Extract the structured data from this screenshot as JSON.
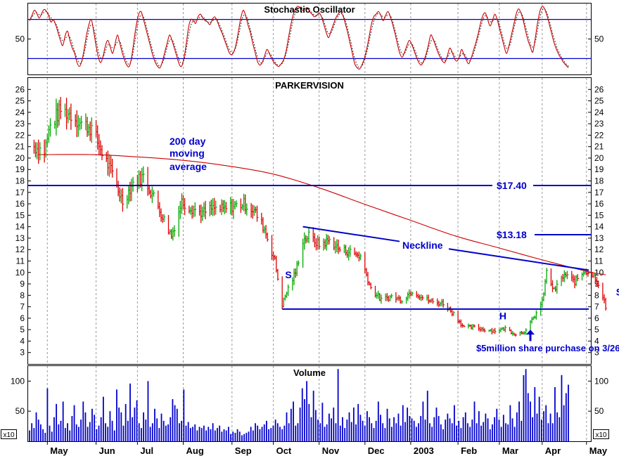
{
  "chart_data": [
    {
      "type": "line",
      "title": "Stochastic Oscillator",
      "ylim": [
        0,
        100
      ],
      "reference_lines": [
        80,
        20
      ],
      "tick_labels": [
        "50"
      ],
      "series": [
        {
          "color": "#cc0000",
          "style": "solid",
          "values": [
            78,
            86,
            94,
            90,
            82,
            88,
            95,
            93,
            86,
            76,
            80,
            72,
            60,
            48,
            40,
            55,
            62,
            48,
            36,
            28,
            14,
            8,
            16,
            34,
            56,
            72,
            80,
            62,
            40,
            22,
            14,
            24,
            40,
            48,
            38,
            28,
            42,
            56,
            44,
            30,
            18,
            10,
            8,
            22,
            48,
            72,
            88,
            92,
            80,
            66,
            52,
            38,
            24,
            14,
            8,
            6,
            16,
            30,
            44,
            56,
            48,
            36,
            24,
            12,
            8,
            20,
            42,
            68,
            80,
            78,
            74,
            84,
            88,
            82,
            78,
            76,
            72,
            80,
            84,
            78,
            68,
            60,
            50,
            40,
            30,
            26,
            30,
            42,
            62,
            82,
            94,
            86,
            72,
            60,
            44,
            30,
            16,
            10,
            14,
            24,
            34,
            28,
            20,
            14,
            10,
            8,
            12,
            18,
            30,
            50,
            70,
            86,
            96,
            100,
            98,
            94,
            96,
            98,
            92,
            88,
            84,
            86,
            90,
            84,
            72,
            60,
            52,
            62,
            72,
            82,
            88,
            92,
            86,
            74,
            60,
            44,
            28,
            12,
            6,
            4,
            10,
            20,
            34,
            52,
            72,
            84,
            88,
            92,
            86,
            78,
            86,
            92,
            84,
            72,
            58,
            42,
            28,
            22,
            30,
            40,
            48,
            42,
            32,
            22,
            14,
            10,
            16,
            26,
            40,
            56,
            50,
            40,
            30,
            22,
            16,
            14,
            24,
            36,
            30,
            20,
            16,
            22,
            34,
            26,
            18,
            12,
            20,
            32,
            44,
            58,
            74,
            86,
            90,
            80,
            70,
            78,
            88,
            80,
            66,
            52,
            38,
            28,
            40,
            56,
            72,
            88,
            96,
            90,
            78,
            62,
            48,
            38,
            30,
            50,
            74,
            92,
            100,
            96,
            86,
            72,
            58,
            44,
            34,
            26,
            20,
            14,
            10,
            6
          ],
          "dates": "daily, May 2002 – May 2003"
        },
        {
          "color": "#333333",
          "style": "dotted",
          "values": "3-period smoothing of the solid series"
        }
      ]
    },
    {
      "type": "ohlc",
      "title": "PARKERVISION",
      "ylim": [
        2,
        27
      ],
      "y_ticks": [
        3,
        4,
        5,
        6,
        7,
        8,
        9,
        10,
        11,
        12,
        13,
        14,
        15,
        16,
        17,
        18,
        19,
        20,
        21,
        22,
        23,
        24,
        25,
        26
      ],
      "y_tick_labels": [
        "3",
        "4",
        "5",
        "6",
        "7",
        "8",
        "9",
        "10",
        "11",
        "12",
        "13",
        "14",
        "15",
        "16",
        "17",
        "18",
        "19",
        "20",
        "21",
        "22",
        "23",
        "24",
        "25",
        "26"
      ],
      "price_bars": "daily high/low/close bars, green = up day, red = down day",
      "close_waypoints": [
        {
          "x": "2002-04-22",
          "y": 21.0
        },
        {
          "x": "2002-04-29",
          "y": 20.6
        },
        {
          "x": "2002-05-03",
          "y": 22.8
        },
        {
          "x": "2002-05-10",
          "y": 24.2
        },
        {
          "x": "2002-05-17",
          "y": 23.8
        },
        {
          "x": "2002-05-24",
          "y": 23.0
        },
        {
          "x": "2002-05-31",
          "y": 22.6
        },
        {
          "x": "2002-06-07",
          "y": 20.5
        },
        {
          "x": "2002-06-14",
          "y": 18.6
        },
        {
          "x": "2002-06-21",
          "y": 16.2
        },
        {
          "x": "2002-06-28",
          "y": 17.8
        },
        {
          "x": "2002-07-05",
          "y": 18.4
        },
        {
          "x": "2002-07-12",
          "y": 16.6
        },
        {
          "x": "2002-07-19",
          "y": 14.6
        },
        {
          "x": "2002-07-24",
          "y": 13.2
        },
        {
          "x": "2002-07-31",
          "y": 16.2
        },
        {
          "x": "2002-08-07",
          "y": 15.6
        },
        {
          "x": "2002-08-14",
          "y": 15.2
        },
        {
          "x": "2002-08-21",
          "y": 15.6
        },
        {
          "x": "2002-08-28",
          "y": 15.5
        },
        {
          "x": "2002-09-04",
          "y": 15.8
        },
        {
          "x": "2002-09-11",
          "y": 16.0
        },
        {
          "x": "2002-09-18",
          "y": 15.4
        },
        {
          "x": "2002-09-25",
          "y": 13.8
        },
        {
          "x": "2002-10-02",
          "y": 11.0
        },
        {
          "x": "2002-10-07",
          "y": 7.2
        },
        {
          "x": "2002-10-11",
          "y": 8.6
        },
        {
          "x": "2002-10-16",
          "y": 10.0
        },
        {
          "x": "2002-10-21",
          "y": 12.8
        },
        {
          "x": "2002-10-25",
          "y": 13.2
        },
        {
          "x": "2002-11-01",
          "y": 12.4
        },
        {
          "x": "2002-11-08",
          "y": 12.8
        },
        {
          "x": "2002-11-15",
          "y": 12.0
        },
        {
          "x": "2002-11-22",
          "y": 11.8
        },
        {
          "x": "2002-11-29",
          "y": 11.4
        },
        {
          "x": "2002-12-06",
          "y": 8.6
        },
        {
          "x": "2002-12-13",
          "y": 7.6
        },
        {
          "x": "2002-12-20",
          "y": 7.9
        },
        {
          "x": "2002-12-27",
          "y": 7.6
        },
        {
          "x": "2003-01-03",
          "y": 8.4
        },
        {
          "x": "2003-01-10",
          "y": 7.8
        },
        {
          "x": "2003-01-17",
          "y": 7.4
        },
        {
          "x": "2003-01-24",
          "y": 7.3
        },
        {
          "x": "2003-01-31",
          "y": 6.4
        },
        {
          "x": "2003-02-07",
          "y": 5.2
        },
        {
          "x": "2003-02-14",
          "y": 5.2
        },
        {
          "x": "2003-02-21",
          "y": 5.0
        },
        {
          "x": "2003-02-28",
          "y": 4.9
        },
        {
          "x": "2003-03-07",
          "y": 5.1
        },
        {
          "x": "2003-03-14",
          "y": 4.6
        },
        {
          "x": "2003-03-21",
          "y": 4.9
        },
        {
          "x": "2003-03-26",
          "y": 6.0
        },
        {
          "x": "2003-04-01",
          "y": 7.4
        },
        {
          "x": "2003-04-04",
          "y": 10.0
        },
        {
          "x": "2003-04-09",
          "y": 8.4
        },
        {
          "x": "2003-04-16",
          "y": 9.8
        },
        {
          "x": "2003-04-23",
          "y": 9.2
        },
        {
          "x": "2003-04-30",
          "y": 10.2
        },
        {
          "x": "2003-05-07",
          "y": 9.6
        },
        {
          "x": "2003-05-12",
          "y": 8.0
        },
        {
          "x": "2003-05-14",
          "y": 6.9
        }
      ],
      "moving_average": {
        "label_lines": [
          "200 day",
          "moving",
          "average"
        ],
        "color": "#cc0000",
        "points": [
          {
            "x": "2002-04-25",
            "y": 20.3
          },
          {
            "x": "2002-06-01",
            "y": 20.3
          },
          {
            "x": "2002-07-01",
            "y": 20.1
          },
          {
            "x": "2002-08-01",
            "y": 19.8
          },
          {
            "x": "2002-09-01",
            "y": 19.3
          },
          {
            "x": "2002-10-01",
            "y": 18.6
          },
          {
            "x": "2002-11-01",
            "y": 17.4
          },
          {
            "x": "2002-12-01",
            "y": 16.0
          },
          {
            "x": "2003-01-01",
            "y": 14.6
          },
          {
            "x": "2003-02-01",
            "y": 13.2
          },
          {
            "x": "2003-03-01",
            "y": 12.2
          },
          {
            "x": "2003-04-01",
            "y": 11.1
          },
          {
            "x": "2003-05-01",
            "y": 10.1
          },
          {
            "x": "2003-05-14",
            "y": 9.8
          }
        ]
      },
      "levels": [
        {
          "label": "$17.40",
          "y": 17.6
        },
        {
          "label": "$13.18",
          "y": 13.3
        }
      ],
      "neckline": {
        "label": "Neckline",
        "from": {
          "x": "2002-10-21",
          "y": 14.0
        },
        "to": {
          "x": "2003-05-31",
          "y": 10.2
        }
      },
      "support": {
        "from": {
          "x": "2002-10-07",
          "y": 6.8
        },
        "to": {
          "x": "2003-05-31",
          "y": 6.8
        }
      },
      "annotations": [
        {
          "text": "S",
          "x": "2002-10-09",
          "y": 9.5
        },
        {
          "text": "H",
          "x": "2003-03-03",
          "y": 5.9
        },
        {
          "text": "S",
          "x": "2003-05-21",
          "y": 8.0
        },
        {
          "text": "$5million share purchase on 3/26",
          "x": "2003-04-05",
          "y": 3.1
        }
      ],
      "arrow": {
        "x": "2003-03-24",
        "y_from": 4.0,
        "y_to": 5.0
      }
    },
    {
      "type": "bar",
      "title": "Volume",
      "unit_label": "x10",
      "ylim": [
        0,
        125
      ],
      "y_ticks": [
        50,
        100
      ],
      "y_tick_labels": [
        "50",
        "100"
      ],
      "bar_color": "#0000cc",
      "values": [
        18,
        30,
        22,
        48,
        36,
        28,
        20,
        14,
        88,
        26,
        16,
        40,
        62,
        28,
        34,
        66,
        22,
        30,
        18,
        42,
        60,
        28,
        24,
        36,
        66,
        48,
        24,
        32,
        54,
        44,
        20,
        26,
        40,
        74,
        30,
        24,
        50,
        34,
        18,
        86,
        56,
        48,
        26,
        62,
        34,
        96,
        40,
        56,
        68,
        30,
        22,
        48,
        36,
        100,
        24,
        30,
        54,
        38,
        22,
        46,
        34,
        26,
        28,
        40,
        70,
        60,
        54,
        30,
        34,
        86,
        26,
        32,
        22,
        24,
        28,
        18,
        24,
        22,
        26,
        18,
        24,
        20,
        30,
        18,
        22,
        26,
        16,
        20,
        18,
        24,
        12,
        16,
        14,
        20,
        16,
        10,
        12,
        14,
        16,
        24,
        18,
        30,
        26,
        20,
        24,
        28,
        34,
        20,
        22,
        26,
        36,
        30,
        24,
        20,
        26,
        48,
        30,
        54,
        66,
        26,
        30,
        56,
        88,
        70,
        100,
        62,
        40,
        84,
        52,
        36,
        30,
        64,
        24,
        28,
        46,
        38,
        56,
        30,
        120,
        26,
        40,
        22,
        36,
        48,
        32,
        56,
        28,
        62,
        44,
        34,
        26,
        50,
        40,
        30,
        22,
        34,
        66,
        44,
        30,
        22,
        54,
        38,
        24,
        40,
        30,
        46,
        26,
        60,
        32,
        56,
        42,
        38,
        34,
        24,
        30,
        42,
        66,
        36,
        84,
        30,
        24,
        40,
        56,
        42,
        28,
        20,
        36,
        46,
        38,
        30,
        60,
        26,
        34,
        22,
        40,
        48,
        30,
        24,
        36,
        66,
        30,
        50,
        26,
        32,
        46,
        38,
        20,
        28,
        40,
        54,
        36,
        24,
        44,
        30,
        28,
        60,
        38,
        24,
        48,
        66,
        34,
        110,
        120,
        80,
        66,
        40,
        90,
        46,
        74,
        36,
        50,
        60,
        30,
        46,
        30,
        90,
        48,
        40,
        110,
        60,
        80,
        94
      ]
    }
  ],
  "x_axis": {
    "ticks": [
      "2002-05-01",
      "2002-06-03",
      "2002-07-01",
      "2002-08-01",
      "2002-09-03",
      "2002-10-01",
      "2002-11-01",
      "2002-12-02",
      "2003-01-02",
      "2003-02-03",
      "2003-03-03",
      "2003-04-01",
      "2003-05-01"
    ],
    "tick_labels": [
      "May",
      "Jun",
      "Jul",
      "Aug",
      "Sep",
      "Oct",
      "Nov",
      "Dec",
      "2003",
      "Feb",
      "Mar",
      "Apr",
      "May"
    ]
  }
}
